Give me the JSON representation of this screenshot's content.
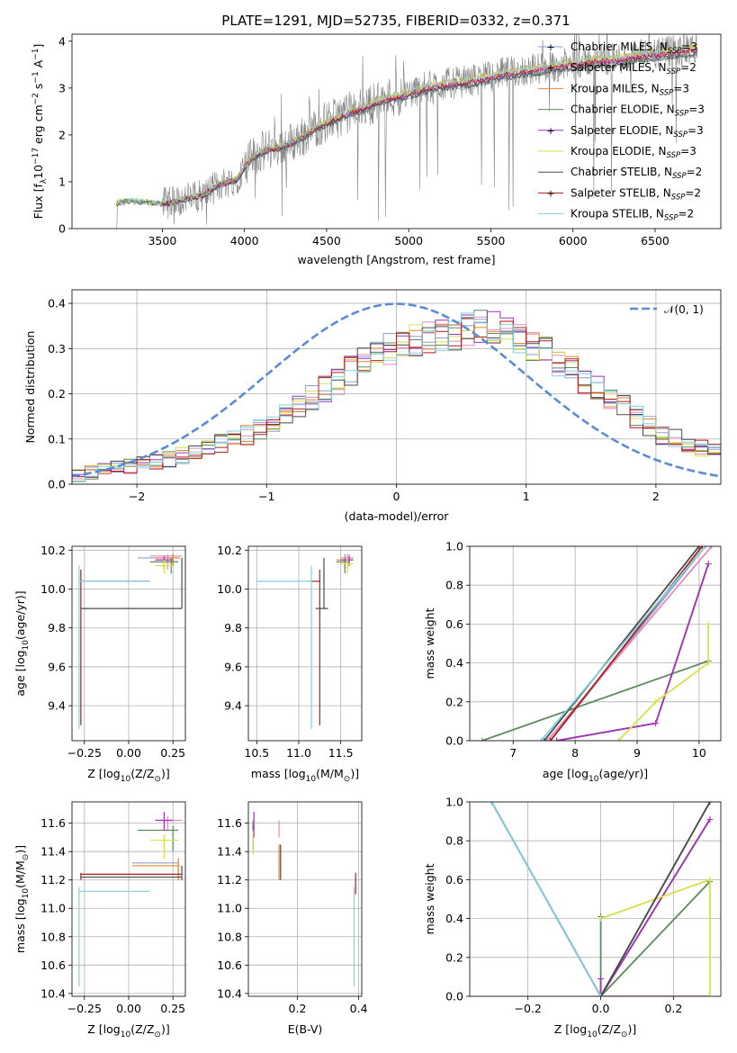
{
  "figure": {
    "title": "PLATE=1291, MJD=52735, FIBERID=0332, z=0.371"
  },
  "colors": {
    "observed": "#808080",
    "gauss": "#5b8bd6",
    "grid": "#b0b0b0"
  },
  "models": [
    {
      "name": "Chabrier MILES, N$_{SSP}$=3",
      "base": "Chabrier MILES, N",
      "sub": "SSP",
      "tail": "=3",
      "color": "#8e9fd0"
    },
    {
      "name": "Salpeter MILES, N$_{SSP}$=2",
      "base": "Salpeter MILES, N",
      "sub": "SSP",
      "tail": "=2",
      "color": "#e48bbd"
    },
    {
      "name": "Kroupa MILES, N$_{SSP}$=3",
      "base": "Kroupa MILES, N",
      "sub": "SSP",
      "tail": "=3",
      "color": "#e3842f"
    },
    {
      "name": "Chabrier ELODIE, N$_{SSP}$=3",
      "base": "Chabrier ELODIE, N",
      "sub": "SSP",
      "tail": "=3",
      "color": "#5c8a5c"
    },
    {
      "name": "Salpeter ELODIE, N$_{SSP}$=3",
      "base": "Salpeter ELODIE, N",
      "sub": "SSP",
      "tail": "=3",
      "color": "#9a33bd"
    },
    {
      "name": "Kroupa ELODIE, N$_{SSP}$=3",
      "base": "Kroupa ELODIE, N",
      "sub": "SSP",
      "tail": "=3",
      "color": "#d6e04a"
    },
    {
      "name": "Chabrier STELIB, N$_{SSP}$=2",
      "base": "Chabrier STELIB, N",
      "sub": "SSP",
      "tail": "=2",
      "color": "#4a4a4a"
    },
    {
      "name": "Salpeter STELIB, N$_{SSP}$=2",
      "base": "Salpeter STELIB, N",
      "sub": "SSP",
      "tail": "=2",
      "color": "#b01c1c"
    },
    {
      "name": "Kroupa STELIB, N$_{SSP}$=2",
      "base": "Kroupa STELIB, N",
      "sub": "SSP",
      "tail": "=2",
      "color": "#7fd3e0"
    }
  ],
  "chart_data": [
    {
      "id": "spectrum",
      "type": "line",
      "xlabel": "wavelength [Angstrom, rest frame]",
      "ylabel": "Flux [f$_\\lambda$10$^{-17}$ erg cm$^{-2}$ s$^{-1}$ A$^{-1}$]",
      "ylabel_parts": {
        "a": "Flux [f",
        "b": "λ",
        "c": "10",
        "d": "−17",
        "e": " erg cm",
        "f": "−2",
        "g": " s",
        "h": "−1",
        "i": " A",
        "j": "−1",
        "k": "]"
      },
      "xlim": [
        2950,
        6900
      ],
      "ylim": [
        0,
        4.15
      ],
      "xticks": [
        3500,
        4000,
        4500,
        5000,
        5500,
        6000,
        6500
      ],
      "yticks": [
        0,
        1,
        2,
        3,
        4
      ],
      "grid": false,
      "legend": "top-right",
      "continuum": [
        [
          3220,
          0.55
        ],
        [
          3300,
          0.6
        ],
        [
          3450,
          0.55
        ],
        [
          3550,
          0.55
        ],
        [
          3650,
          0.65
        ],
        [
          3750,
          0.72
        ],
        [
          3850,
          0.95
        ],
        [
          3950,
          1.05
        ],
        [
          4050,
          1.55
        ],
        [
          4150,
          1.7
        ],
        [
          4250,
          1.78
        ],
        [
          4350,
          1.95
        ],
        [
          4450,
          2.2
        ],
        [
          4550,
          2.35
        ],
        [
          4650,
          2.5
        ],
        [
          4750,
          2.62
        ],
        [
          4850,
          2.78
        ],
        [
          4950,
          2.85
        ],
        [
          5050,
          2.95
        ],
        [
          5150,
          3.05
        ],
        [
          5250,
          3.1
        ],
        [
          5350,
          3.15
        ],
        [
          5450,
          3.2
        ],
        [
          5550,
          3.3
        ],
        [
          5650,
          3.35
        ],
        [
          5750,
          3.4
        ],
        [
          5850,
          3.45
        ],
        [
          5950,
          3.5
        ],
        [
          6050,
          3.55
        ],
        [
          6150,
          3.62
        ],
        [
          6250,
          3.6
        ],
        [
          6350,
          3.68
        ],
        [
          6450,
          3.72
        ],
        [
          6550,
          3.75
        ],
        [
          6650,
          3.8
        ],
        [
          6760,
          3.85
        ]
      ],
      "observed_range": [
        3220,
        6760
      ],
      "observed_start_flux": 0.55
    },
    {
      "id": "residuals",
      "type": "bar",
      "xlabel": "(data-model)/error",
      "ylabel": "Normed distribution",
      "xlim": [
        -2.5,
        2.5
      ],
      "ylim": [
        0,
        0.43
      ],
      "xticks": [
        -2,
        -1,
        0,
        1,
        2
      ],
      "yticks": [
        0.0,
        0.1,
        0.2,
        0.3,
        0.4
      ],
      "grid": true,
      "legend": "top-right",
      "gauss_label": "𝒩(0, 1)",
      "bin_edges_range": [
        -2.5,
        2.5
      ],
      "bin_width": 0.1,
      "envelope": [
        0.02,
        0.025,
        0.03,
        0.035,
        0.04,
        0.045,
        0.05,
        0.055,
        0.065,
        0.07,
        0.08,
        0.09,
        0.1,
        0.11,
        0.12,
        0.13,
        0.15,
        0.17,
        0.19,
        0.21,
        0.23,
        0.25,
        0.27,
        0.29,
        0.3,
        0.31,
        0.32,
        0.33,
        0.33,
        0.33,
        0.34,
        0.35,
        0.35,
        0.34,
        0.33,
        0.31,
        0.29,
        0.27,
        0.25,
        0.23,
        0.21,
        0.19,
        0.17,
        0.15,
        0.13,
        0.11,
        0.1,
        0.09,
        0.08,
        0.07
      ]
    },
    {
      "id": "age-Z",
      "type": "scatter",
      "xlabel": "Z [log$_{10}$(Z/Z$_\\odot$)]",
      "ylabel": "age  [log$_{10}$(age/yr)]",
      "xlim": [
        -0.32,
        0.32
      ],
      "ylim": [
        9.22,
        10.22
      ],
      "xticks": [
        -0.25,
        0.0,
        0.25
      ],
      "xticklabels": [
        "−0.25",
        "0.00",
        "0.25"
      ],
      "yticks": [
        9.4,
        9.6,
        9.8,
        10.0,
        10.2
      ],
      "grid": true,
      "points": [
        {
          "m": 0,
          "x": 0.25,
          "y": 10.16,
          "xl": 0.05,
          "xh": 0.28,
          "yl": 10.12,
          "yh": 10.18
        },
        {
          "m": 1,
          "x": 0.22,
          "y": 10.17,
          "xl": 0.12,
          "xh": 0.3,
          "yl": 10.1,
          "yh": 10.18
        },
        {
          "m": 2,
          "x": 0.25,
          "y": 10.16,
          "xl": 0.15,
          "xh": 0.29,
          "yl": 10.12,
          "yh": 10.18
        },
        {
          "m": 3,
          "x": 0.24,
          "y": 10.14,
          "xl": 0.12,
          "xh": 0.28,
          "yl": 10.08,
          "yh": 10.16
        },
        {
          "m": 4,
          "x": 0.2,
          "y": 10.15,
          "xl": 0.15,
          "xh": 0.25,
          "yl": 10.1,
          "yh": 10.17
        },
        {
          "m": 5,
          "x": 0.2,
          "y": 10.12,
          "xl": 0.15,
          "xh": 0.25,
          "yl": 10.08,
          "yh": 10.15
        },
        {
          "m": 6,
          "x": 0.3,
          "y": 9.9,
          "xl": -0.27,
          "xh": 0.3,
          "yl": 9.9,
          "yh": 10.16
        },
        {
          "m": 7,
          "x": -0.27,
          "y": 10.04,
          "xl": -0.27,
          "xh": 0.12,
          "yl": 9.3,
          "yh": 10.1
        },
        {
          "m": 8,
          "x": -0.28,
          "y": 10.04,
          "xl": -0.28,
          "xh": 0.12,
          "yl": 9.28,
          "yh": 10.12
        }
      ]
    },
    {
      "id": "age-mass",
      "type": "scatter",
      "xlabel": "mass [log$_{10}$(M/M$_\\odot$)]",
      "ylabel": "",
      "xlim": [
        10.4,
        11.75
      ],
      "ylim": [
        9.22,
        10.22
      ],
      "xticks": [
        10.5,
        11.0,
        11.5
      ],
      "yticks": [
        9.4,
        9.6,
        9.8,
        10.0,
        10.2
      ],
      "grid": true,
      "points": [
        {
          "m": 0,
          "x": 11.6,
          "y": 10.16,
          "xl": 11.5,
          "xh": 11.65,
          "yl": 10.12,
          "yh": 10.18
        },
        {
          "m": 1,
          "x": 11.58,
          "y": 10.16,
          "xl": 11.5,
          "xh": 11.65,
          "yl": 10.1,
          "yh": 10.18
        },
        {
          "m": 2,
          "x": 11.55,
          "y": 10.15,
          "xl": 11.45,
          "xh": 11.62,
          "yl": 10.1,
          "yh": 10.18
        },
        {
          "m": 3,
          "x": 11.55,
          "y": 10.14,
          "xl": 11.45,
          "xh": 11.6,
          "yl": 10.08,
          "yh": 10.16
        },
        {
          "m": 4,
          "x": 11.6,
          "y": 10.15,
          "xl": 11.5,
          "xh": 11.65,
          "yl": 10.12,
          "yh": 10.17
        },
        {
          "m": 5,
          "x": 11.58,
          "y": 10.13,
          "xl": 11.5,
          "xh": 11.65,
          "yl": 10.08,
          "yh": 10.16
        },
        {
          "m": 6,
          "x": 11.3,
          "y": 9.9,
          "xl": 11.2,
          "xh": 11.35,
          "yl": 9.9,
          "yh": 10.16
        },
        {
          "m": 7,
          "x": 11.25,
          "y": 10.04,
          "xl": 11.1,
          "xh": 11.25,
          "yl": 9.3,
          "yh": 10.1
        },
        {
          "m": 8,
          "x": 11.15,
          "y": 10.04,
          "xl": 10.5,
          "xh": 11.15,
          "yl": 9.28,
          "yh": 10.12
        }
      ]
    },
    {
      "id": "weight-age",
      "type": "line",
      "xlabel": "age  [log$_{10}$(age/yr)]",
      "ylabel": "mass weight",
      "xlim": [
        6.3,
        10.35
      ],
      "ylim": [
        0.0,
        1.0
      ],
      "xticks": [
        7,
        8,
        9,
        10
      ],
      "yticks": [
        0.0,
        0.2,
        0.4,
        0.6,
        0.8,
        1.0
      ],
      "grid": true,
      "series": [
        {
          "m": 0,
          "points": [
            [
              7.6,
              0.0
            ],
            [
              10.1,
              1.0
            ]
          ]
        },
        {
          "m": 1,
          "points": [
            [
              7.55,
              0.0
            ],
            [
              10.2,
              1.0
            ]
          ]
        },
        {
          "m": 2,
          "points": [
            [
              7.7,
              0.0
            ],
            [
              9.3,
              0.09
            ],
            [
              10.15,
              0.91
            ]
          ]
        },
        {
          "m": 3,
          "points": [
            [
              6.5,
              0.0
            ],
            [
              10.15,
              0.41
            ]
          ]
        },
        {
          "m": 4,
          "points": [
            [
              7.7,
              0.0
            ],
            [
              9.3,
              0.09
            ],
            [
              10.15,
              0.91
            ]
          ]
        },
        {
          "m": 5,
          "points": [
            [
              8.7,
              0.0
            ],
            [
              9.3,
              0.2
            ],
            [
              10.15,
              0.4
            ],
            [
              10.15,
              0.6
            ]
          ]
        },
        {
          "m": 6,
          "points": [
            [
              7.5,
              0.0
            ],
            [
              10.0,
              1.0
            ]
          ]
        },
        {
          "m": 7,
          "points": [
            [
              7.6,
              0.0
            ],
            [
              10.05,
              1.0
            ]
          ]
        },
        {
          "m": 8,
          "points": [
            [
              7.45,
              0.0
            ],
            [
              10.1,
              1.0
            ]
          ]
        }
      ]
    },
    {
      "id": "mass-Z",
      "type": "scatter",
      "xlabel": "Z [log$_{10}$(Z/Z$_\\odot$)]",
      "ylabel": "mass [log$_{10}$(M/M$_\\odot$)]",
      "xlim": [
        -0.32,
        0.32
      ],
      "ylim": [
        10.38,
        11.75
      ],
      "xticks": [
        -0.25,
        0.0,
        0.25
      ],
      "xticklabels": [
        "−0.25",
        "0.00",
        "0.25"
      ],
      "yticks": [
        10.4,
        10.6,
        10.8,
        11.0,
        11.2,
        11.4,
        11.6
      ],
      "grid": true,
      "points": [
        {
          "m": 0,
          "x": 0.28,
          "y": 11.32,
          "xl": 0.02,
          "xh": 0.28,
          "yl": 11.2,
          "yh": 11.35
        },
        {
          "m": 1,
          "x": 0.22,
          "y": 11.62,
          "xl": 0.15,
          "xh": 0.3,
          "yl": 11.55,
          "yh": 11.65
        },
        {
          "m": 2,
          "x": 0.28,
          "y": 11.3,
          "xl": 0.02,
          "xh": 0.28,
          "yl": 11.2,
          "yh": 11.35
        },
        {
          "m": 3,
          "x": 0.25,
          "y": 11.55,
          "xl": 0.05,
          "xh": 0.28,
          "yl": 11.4,
          "yh": 11.58
        },
        {
          "m": 4,
          "x": 0.2,
          "y": 11.62,
          "xl": 0.15,
          "xh": 0.25,
          "yl": 11.55,
          "yh": 11.68
        },
        {
          "m": 5,
          "x": 0.2,
          "y": 11.48,
          "xl": 0.12,
          "xh": 0.28,
          "yl": 11.35,
          "yh": 11.52
        },
        {
          "m": 6,
          "x": 0.3,
          "y": 11.22,
          "xl": -0.27,
          "xh": 0.3,
          "yl": 11.2,
          "yh": 11.3
        },
        {
          "m": 7,
          "x": -0.27,
          "y": 11.24,
          "xl": -0.27,
          "xh": 0.3,
          "yl": 11.2,
          "yh": 11.25
        },
        {
          "m": 8,
          "x": -0.28,
          "y": 11.12,
          "xl": -0.28,
          "xh": 0.12,
          "yl": 10.45,
          "yh": 11.15
        }
      ]
    },
    {
      "id": "mass-EBV",
      "type": "scatter",
      "xlabel": "E(B-V)",
      "ylabel": "",
      "xlim": [
        0.04,
        0.41
      ],
      "ylim": [
        10.38,
        11.75
      ],
      "xticks": [
        0.2,
        0.4
      ],
      "xticklabels": [
        "0.2",
        "0.4"
      ],
      "yticks": [
        10.4,
        10.6,
        10.8,
        11.0,
        11.2,
        11.4,
        11.6
      ],
      "grid": true,
      "points": [
        {
          "m": 0,
          "x": 0.055,
          "y": 11.5,
          "xl": 0.055,
          "xh": 0.058,
          "yl": 11.4,
          "yh": 11.62
        },
        {
          "m": 1,
          "x": 0.14,
          "y": 11.55,
          "xl": 0.14,
          "xh": 0.142,
          "yl": 11.5,
          "yh": 11.62
        },
        {
          "m": 2,
          "x": 0.14,
          "y": 11.3,
          "xl": 0.138,
          "xh": 0.142,
          "yl": 11.2,
          "yh": 11.45
        },
        {
          "m": 3,
          "x": 0.055,
          "y": 11.45,
          "xl": 0.055,
          "xh": 0.058,
          "yl": 11.38,
          "yh": 11.6
        },
        {
          "m": 4,
          "x": 0.058,
          "y": 11.6,
          "xl": 0.057,
          "xh": 0.059,
          "yl": 11.5,
          "yh": 11.68
        },
        {
          "m": 5,
          "x": 0.055,
          "y": 11.48,
          "xl": 0.054,
          "xh": 0.056,
          "yl": 11.38,
          "yh": 11.55
        },
        {
          "m": 6,
          "x": 0.145,
          "y": 11.3,
          "xl": 0.144,
          "xh": 0.146,
          "yl": 11.2,
          "yh": 11.45
        },
        {
          "m": 7,
          "x": 0.39,
          "y": 11.2,
          "xl": 0.389,
          "xh": 0.391,
          "yl": 11.1,
          "yh": 11.25
        },
        {
          "m": 8,
          "x": 0.385,
          "y": 11.1,
          "xl": 0.384,
          "xh": 0.386,
          "yl": 10.45,
          "yh": 11.15
        }
      ]
    },
    {
      "id": "weight-Z",
      "type": "line",
      "xlabel": "Z [log$_{10}$(Z/Z$_\\odot$)]",
      "ylabel": "mass weight",
      "xlim": [
        -0.36,
        0.33
      ],
      "ylim": [
        0.0,
        1.0
      ],
      "xticks": [
        -0.2,
        0.0,
        0.2
      ],
      "xticklabels": [
        "−0.2",
        "0.0",
        "0.2"
      ],
      "yticks": [
        0.0,
        0.2,
        0.4,
        0.6,
        0.8,
        1.0
      ],
      "grid": true,
      "series": [
        {
          "m": 0,
          "points": [
            [
              -0.3,
              1.0
            ],
            [
              0.0,
              0.0
            ],
            [
              0.3,
              1.0
            ]
          ]
        },
        {
          "m": 1,
          "points": [
            [
              -0.3,
              1.0
            ],
            [
              0.0,
              0.0
            ],
            [
              0.3,
              0.0
            ]
          ]
        },
        {
          "m": 2,
          "points": [
            [
              0.0,
              0.09
            ],
            [
              0.0,
              0.0
            ],
            [
              0.3,
              0.91
            ]
          ]
        },
        {
          "m": 3,
          "points": [
            [
              0.0,
              0.41
            ],
            [
              0.0,
              0.0
            ],
            [
              0.3,
              0.59
            ]
          ]
        },
        {
          "m": 4,
          "points": [
            [
              0.0,
              0.09
            ],
            [
              0.0,
              0.0
            ],
            [
              0.3,
              0.91
            ]
          ]
        },
        {
          "m": 5,
          "points": [
            [
              0.0,
              0.4
            ],
            [
              0.3,
              0.6
            ],
            [
              0.3,
              0.0
            ]
          ]
        },
        {
          "m": 6,
          "points": [
            [
              0.0,
              0.0
            ],
            [
              0.3,
              1.0
            ]
          ]
        },
        {
          "m": 7,
          "points": [
            [
              -0.3,
              1.0
            ],
            [
              0.0,
              0.0
            ]
          ]
        },
        {
          "m": 8,
          "points": [
            [
              -0.3,
              1.0
            ],
            [
              0.0,
              0.0
            ]
          ]
        }
      ]
    }
  ]
}
